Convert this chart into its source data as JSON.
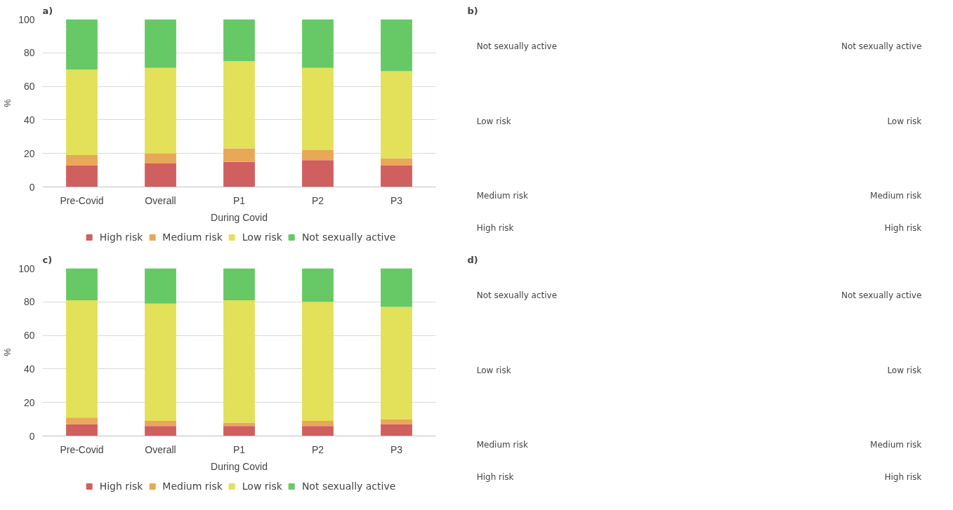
{
  "chart_data": [
    {
      "type": "bar",
      "title": "a)",
      "ylabel": "%",
      "stacked": true,
      "categories": [
        "Pre-Covid",
        "Overall",
        "P1",
        "P2",
        "P3"
      ],
      "annotations": [
        "During Covid"
      ],
      "ylim": [
        0,
        100
      ],
      "yticks": [
        0,
        20,
        40,
        60,
        80,
        100
      ],
      "grid": "y",
      "legend": "bottom",
      "series": [
        {
          "name": "High risk",
          "color": "#d05f5f",
          "values": [
            13,
            14,
            15,
            16,
            13
          ]
        },
        {
          "name": "Medium risk",
          "color": "#e8a857",
          "values": [
            6,
            6,
            8,
            6,
            4
          ]
        },
        {
          "name": "Low risk",
          "color": "#e3e05a",
          "values": [
            51,
            51,
            52,
            49,
            52
          ]
        },
        {
          "name": "Not sexually active",
          "color": "#66c966",
          "values": [
            30,
            29,
            25,
            29,
            31
          ]
        }
      ]
    },
    {
      "type": "other",
      "title": "b)",
      "annotations": [
        "Not sexually active",
        "Low risk",
        "Medium risk",
        "High risk",
        "Not sexually active",
        "Low risk",
        "Medium risk",
        "High risk"
      ]
    },
    {
      "type": "bar",
      "title": "c)",
      "ylabel": "%",
      "stacked": true,
      "categories": [
        "Pre-Covid",
        "Overall",
        "P1",
        "P2",
        "P3"
      ],
      "annotations": [
        "During Covid"
      ],
      "ylim": [
        0,
        100
      ],
      "yticks": [
        0,
        20,
        40,
        60,
        80,
        100
      ],
      "grid": "y",
      "legend": "bottom",
      "series": [
        {
          "name": "High risk",
          "color": "#d05f5f",
          "values": [
            7,
            6,
            6,
            6,
            7
          ]
        },
        {
          "name": "Medium risk",
          "color": "#e8a857",
          "values": [
            4,
            3,
            2,
            3,
            3
          ]
        },
        {
          "name": "Low risk",
          "color": "#e3e05a",
          "values": [
            70,
            70,
            73,
            71,
            67
          ]
        },
        {
          "name": "Not sexually active",
          "color": "#66c966",
          "values": [
            19,
            21,
            19,
            20,
            23
          ]
        }
      ]
    },
    {
      "type": "other",
      "title": "d)",
      "annotations": [
        "Not sexually active",
        "Low risk",
        "Medium risk",
        "High risk",
        "Not sexually active",
        "Low risk",
        "Medium risk",
        "High risk"
      ]
    }
  ]
}
